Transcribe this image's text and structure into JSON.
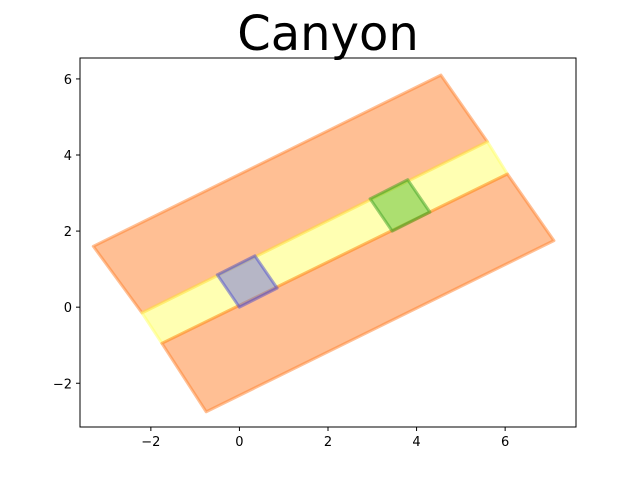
{
  "chart_data": {
    "type": "area",
    "title": "Canyon",
    "xlabel": "",
    "ylabel": "",
    "xlim": [
      -3.6,
      7.6
    ],
    "ylim": [
      -3.15,
      6.55
    ],
    "xticks": [
      -2,
      0,
      2,
      4,
      6
    ],
    "yticks": [
      -2,
      0,
      2,
      4,
      6
    ],
    "xtick_labels": [
      "−2",
      "0",
      "2",
      "4",
      "6"
    ],
    "ytick_labels": [
      "−2",
      "0",
      "2",
      "4",
      "6"
    ],
    "grid": false,
    "shapes": [
      {
        "role": "upper-wall",
        "fill": "#ff7f2a",
        "stroke": "#ff7f2a",
        "polygon": [
          [
            -3.3,
            1.6
          ],
          [
            4.55,
            6.1
          ],
          [
            5.6,
            4.35
          ],
          [
            -2.2,
            -0.15
          ]
        ]
      },
      {
        "role": "canyon-floor",
        "fill": "#ffff66",
        "stroke": "#ffff66",
        "polygon": [
          [
            -2.2,
            -0.15
          ],
          [
            5.6,
            4.35
          ],
          [
            6.05,
            3.5
          ],
          [
            -1.75,
            -0.95
          ]
        ]
      },
      {
        "role": "lower-wall",
        "fill": "#ff7f2a",
        "stroke": "#ff7f2a",
        "polygon": [
          [
            -1.75,
            -0.95
          ],
          [
            6.05,
            3.5
          ],
          [
            7.1,
            1.75
          ],
          [
            -0.75,
            -2.75
          ]
        ]
      },
      {
        "role": "blue-square",
        "fill": "#6d6dd9",
        "stroke": "#4b4bd0",
        "polygon": [
          [
            -0.5,
            0.85
          ],
          [
            0.35,
            1.35
          ],
          [
            0.85,
            0.5
          ],
          [
            0.0,
            0.0
          ]
        ]
      },
      {
        "role": "green-square",
        "fill": "#59c02e",
        "stroke": "#3aa022",
        "polygon": [
          [
            2.95,
            2.85
          ],
          [
            3.8,
            3.35
          ],
          [
            4.3,
            2.5
          ],
          [
            3.45,
            2.0
          ]
        ]
      }
    ]
  }
}
